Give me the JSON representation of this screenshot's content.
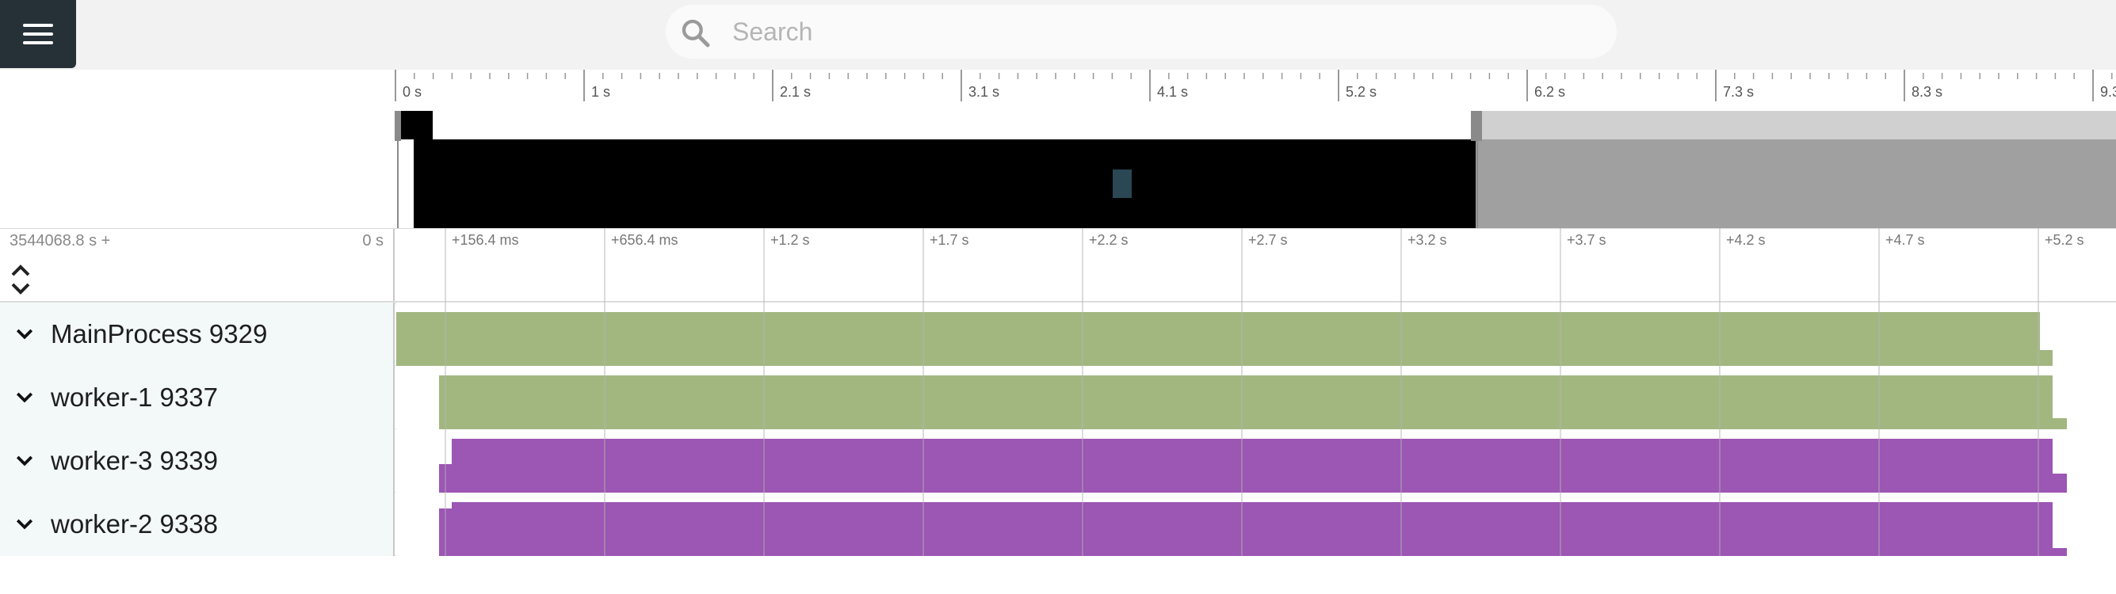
{
  "search": {
    "placeholder": "Search"
  },
  "overview": {
    "tick_labels": [
      "0 s",
      "1 s",
      "2.1 s",
      "3.1 s",
      "4.1 s",
      "5.2 s",
      "6.2 s",
      "7.3 s",
      "8.3 s",
      "9.3"
    ]
  },
  "axis": {
    "offset_label": "3544068.8 s +",
    "zero_label": "0 s",
    "tick_labels": [
      "+156.4 ms",
      "+656.4 ms",
      "+1.2 s",
      "+1.7 s",
      "+2.2 s",
      "+2.7 s",
      "+3.2 s",
      "+3.7 s",
      "+4.2 s",
      "+4.7 s",
      "+5.2 s"
    ]
  },
  "tracks": [
    {
      "title": "MainProcess 9329",
      "color": "#a2b780"
    },
    {
      "title": "worker-1 9337",
      "color": "#a2b780"
    },
    {
      "title": "worker-3 9339",
      "color": "#9c56b3"
    },
    {
      "title": "worker-2 9338",
      "color": "#9c56b3"
    }
  ],
  "colors": {
    "header_bg": "#263137",
    "overview_selected": "#000000",
    "overview_unselected": "#a0a0a0",
    "overview_marker": "#2a4753",
    "main_process": "#a2b780",
    "worker": "#9c56b3"
  }
}
